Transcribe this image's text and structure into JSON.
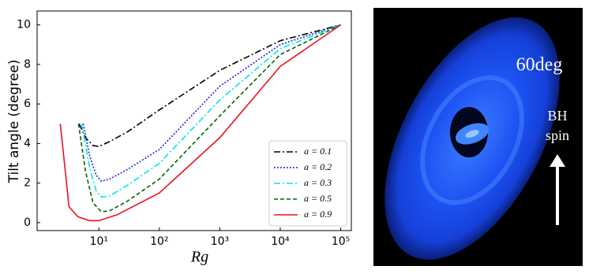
{
  "chart_data": {
    "type": "line",
    "x_label": "Rg",
    "y_label": "Tilt angle (degree)",
    "xscale": "log",
    "xlim": [
      0.95,
      150000
    ],
    "ylim": [
      -0.4,
      10.7
    ],
    "xticks": [
      {
        "value": 10,
        "label": "10¹"
      },
      {
        "value": 100,
        "label": "10²"
      },
      {
        "value": 1000,
        "label": "10³"
      },
      {
        "value": 10000,
        "label": "10⁴"
      },
      {
        "value": 100000,
        "label": "10⁵"
      }
    ],
    "yticks": [
      0,
      2,
      4,
      6,
      8,
      10
    ],
    "legend": "lower right",
    "series": [
      {
        "name": "a = 0.1",
        "color": "#000000",
        "dash": "8,3,2,3",
        "x": [
          4.7,
          6,
          8,
          10,
          15,
          30,
          100,
          1000,
          10000,
          100000
        ],
        "values": [
          5.0,
          4.3,
          3.9,
          3.85,
          4.1,
          4.6,
          5.7,
          7.7,
          9.2,
          10
        ]
      },
      {
        "name": "a = 0.2",
        "color": "#1f1fd6",
        "dash": "2,2",
        "x": [
          5.5,
          7,
          9,
          11,
          15,
          30,
          100,
          1000,
          10000,
          100000
        ],
        "values": [
          5.0,
          3.4,
          2.4,
          2.1,
          2.2,
          2.7,
          3.7,
          6.9,
          9.0,
          10
        ]
      },
      {
        "name": "a = 0.3",
        "color": "#00e5e5",
        "dash": "8,3,2,3",
        "x": [
          5.2,
          7,
          9,
          11,
          15,
          30,
          100,
          1000,
          10000,
          100000
        ],
        "values": [
          5.0,
          2.8,
          1.6,
          1.3,
          1.35,
          1.9,
          3.0,
          6.2,
          8.8,
          10
        ]
      },
      {
        "name": "a = 0.5",
        "color": "#006400",
        "dash": "5,3",
        "x": [
          4.6,
          6,
          8,
          11,
          15,
          30,
          100,
          1000,
          10000,
          100000
        ],
        "values": [
          5.0,
          2.6,
          1.0,
          0.55,
          0.6,
          1.1,
          2.2,
          5.4,
          8.5,
          10
        ]
      },
      {
        "name": "a = 0.9",
        "color": "#e8141e",
        "dash": "",
        "x": [
          2.3,
          3.2,
          4.5,
          7,
          10,
          20,
          100,
          1000,
          10000,
          100000
        ],
        "values": [
          5.0,
          0.8,
          0.3,
          0.1,
          0.1,
          0.4,
          1.5,
          4.3,
          7.9,
          10
        ]
      }
    ]
  },
  "image": {
    "angle_label": "60deg",
    "spin_label_1": "BH",
    "spin_label_2": "spin"
  }
}
